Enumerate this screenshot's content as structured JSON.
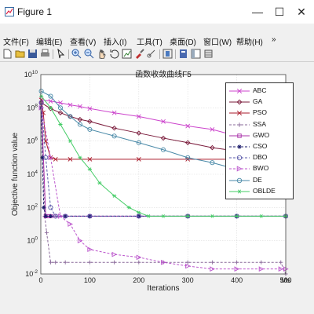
{
  "window": {
    "title": "Figure 1",
    "controls": {
      "minimize": "—",
      "maximize": "☐",
      "close": "✕"
    }
  },
  "menu": {
    "items": [
      {
        "label": "文件(F)"
      },
      {
        "label": "编辑(E)"
      },
      {
        "label": "查看(V)"
      },
      {
        "label": "插入(I)"
      },
      {
        "label": "工具(T)"
      },
      {
        "label": "桌面(D)"
      },
      {
        "label": "窗口(W)"
      },
      {
        "label": "帮助(H)"
      }
    ],
    "overflow": "»"
  },
  "toolbar": {
    "icons": [
      "new-figure-icon",
      "open-file-icon",
      "save-icon",
      "print-icon",
      "pointer-icon",
      "zoom-in-icon",
      "zoom-out-icon",
      "pan-icon",
      "rotate-icon",
      "data-cursor-icon",
      "brush-icon",
      "link-icon",
      "colorbar-icon",
      "legend-icon",
      "hide-plot-tools-icon",
      "show-plot-tools-icon"
    ]
  },
  "colors": {
    "ABC": "#cc44cc",
    "GA": "#7a1a3a",
    "PSO": "#aa1a2a",
    "SSA": "#8a6a9a",
    "GWO": "#aa33aa",
    "CSO": "#1a1a6a",
    "DBO": "#5a5aaa",
    "BWO": "#bb55cc",
    "DE": "#4a8aa8",
    "OBLDE": "#44cc66"
  },
  "chart_data": {
    "type": "line",
    "title": "函数收敛曲线F5",
    "xlabel": "Iterations",
    "ylabel": "Objective function value",
    "xlim": [
      0,
      500
    ],
    "ylim": [
      0.01,
      10000000000
    ],
    "yscale": "log",
    "grid": true,
    "legend_position": "top-right",
    "x_ticks": [
      "0",
      "100",
      "200",
      "300",
      "400",
      "500"
    ],
    "y_ticks": [
      {
        "v": 0.01,
        "base": "10",
        "exp": "-2"
      },
      {
        "v": 1,
        "base": "10",
        "exp": "0"
      },
      {
        "v": 100,
        "base": "10",
        "exp": "2"
      },
      {
        "v": 10000,
        "base": "10",
        "exp": "4"
      },
      {
        "v": 1000000,
        "base": "10",
        "exp": "6"
      },
      {
        "v": 100000000,
        "base": "10",
        "exp": "8"
      },
      {
        "v": 10000000000,
        "base": "10",
        "exp": "10"
      }
    ],
    "series": [
      {
        "name": "ABC",
        "marker": "x",
        "x": [
          1,
          20,
          40,
          60,
          80,
          100,
          150,
          200,
          250,
          300,
          350,
          400,
          450,
          500
        ],
        "y": [
          300000000.0,
          250000000.0,
          200000000.0,
          150000000.0,
          120000000.0,
          90000000.0,
          50000000.0,
          30000000.0,
          15000000.0,
          8000000.0,
          5000000.0,
          2000000.0,
          800000.0,
          400000.0
        ]
      },
      {
        "name": "GA",
        "marker": "diamond",
        "x": [
          1,
          20,
          40,
          60,
          80,
          100,
          150,
          200,
          250,
          300,
          350,
          400,
          450,
          500
        ],
        "y": [
          200000000.0,
          90000000.0,
          50000000.0,
          30000000.0,
          20000000.0,
          15000000.0,
          6000000.0,
          3000000.0,
          1500000.0,
          800000.0,
          400000.0,
          250000.0,
          200000.0,
          150000.0
        ]
      },
      {
        "name": "PSO",
        "marker": "x",
        "x": [
          1,
          5,
          10,
          20,
          30,
          60,
          100,
          200,
          300,
          400,
          500
        ],
        "y": [
          300000000.0,
          50000000.0,
          1000000.0,
          100000.0,
          80000.0,
          80000.0,
          80000.0,
          80000.0,
          80000.0,
          80000.0,
          80000.0
        ]
      },
      {
        "name": "SSA",
        "marker": "plus",
        "x": [
          1,
          4,
          8,
          12,
          20,
          30,
          50,
          100,
          150,
          200,
          250,
          300,
          350,
          400,
          450,
          490,
          500
        ],
        "y": [
          200000000.0,
          100000.0,
          30,
          3,
          0.05,
          0.05,
          0.05,
          0.05,
          0.05,
          0.05,
          0.05,
          0.05,
          0.05,
          0.05,
          0.05,
          0.05,
          0.01
        ]
      },
      {
        "name": "GWO",
        "marker": "square",
        "x": [
          1,
          10,
          15,
          20,
          30,
          50,
          100,
          200,
          300,
          400,
          500
        ],
        "y": [
          200000000.0,
          30,
          30,
          30,
          30,
          30,
          30,
          30,
          30,
          30,
          30
        ]
      },
      {
        "name": "CSO",
        "marker": "star",
        "x": [
          1,
          3,
          6,
          10,
          20,
          50,
          100,
          200,
          300,
          400,
          500
        ],
        "y": [
          100000000.0,
          100000.0,
          100,
          30,
          30,
          30,
          30,
          30,
          30,
          30,
          30
        ]
      },
      {
        "name": "DBO",
        "marker": "circle",
        "x": [
          1,
          10,
          20,
          30,
          50,
          100,
          200,
          300,
          400,
          500
        ],
        "y": [
          200000000.0,
          100000.0,
          100,
          30,
          30,
          30,
          30,
          30,
          30,
          30
        ]
      },
      {
        "name": "BWO",
        "marker": "triangle-right",
        "x": [
          1,
          20,
          40,
          60,
          80,
          100,
          150,
          200,
          250,
          300,
          350,
          400,
          450,
          490,
          500
        ],
        "y": [
          100000000.0,
          100000.0,
          30,
          10,
          1,
          0.3,
          0.15,
          0.1,
          0.05,
          0.03,
          0.02,
          0.02,
          0.02,
          0.02,
          0.02
        ]
      },
      {
        "name": "DE",
        "marker": "circle",
        "x": [
          1,
          20,
          40,
          60,
          80,
          100,
          150,
          200,
          250,
          300,
          350,
          400,
          450,
          500
        ],
        "y": [
          1000000000.0,
          500000000.0,
          100000000.0,
          30000000.0,
          10000000.0,
          5000000.0,
          2000000.0,
          800000.0,
          300000.0,
          100000.0,
          50000.0,
          20000.0,
          6000.0,
          3000.0
        ]
      },
      {
        "name": "OBLDE",
        "marker": "asterisk",
        "x": [
          1,
          20,
          40,
          60,
          80,
          100,
          120,
          150,
          180,
          200,
          220,
          250,
          300,
          350,
          400,
          450,
          500
        ],
        "y": [
          500000000.0,
          100000000.0,
          10000000.0,
          1000000.0,
          100000.0,
          20000.0,
          3000.0,
          500,
          100,
          50,
          30,
          30,
          30,
          30,
          30,
          30,
          30
        ]
      }
    ],
    "watermark": "Ms"
  }
}
